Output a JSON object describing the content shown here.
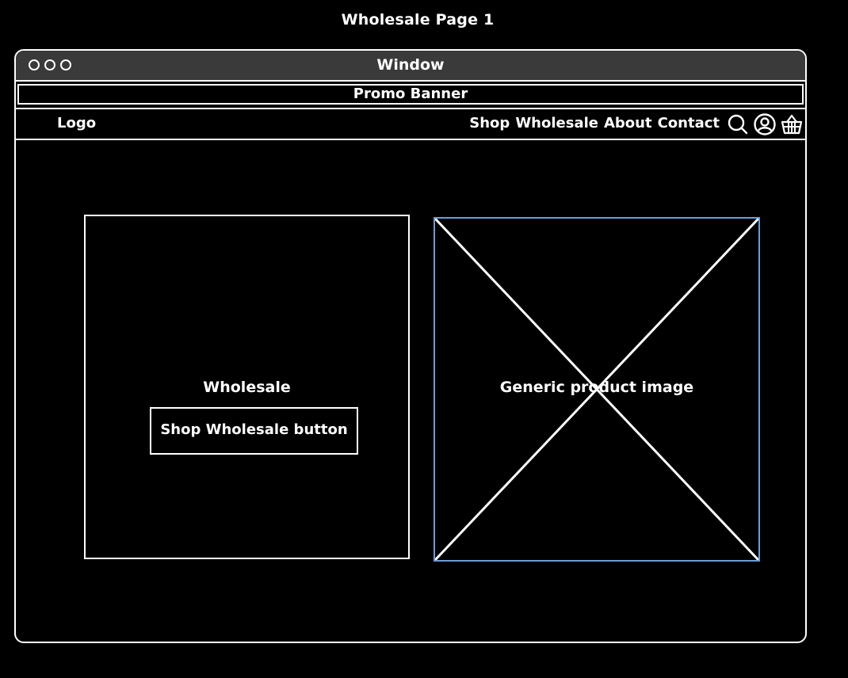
{
  "page": {
    "title": "Wholesale Page 1"
  },
  "window": {
    "title": "Window"
  },
  "promo": {
    "text": "Promo Banner"
  },
  "nav": {
    "logo": "Logo",
    "links": [
      "Shop",
      "Wholesale",
      "About",
      "Contact"
    ],
    "icons": [
      "search-icon",
      "account-icon",
      "basket-icon"
    ]
  },
  "hero": {
    "heading": "Wholesale",
    "button_label": "Shop Wholesale button"
  },
  "image": {
    "label": "Generic product image"
  },
  "colors": {
    "background": "#000000",
    "titlebar": "#3a3a3a",
    "stroke": "#ffffff",
    "image_selection": "#6a9ed9"
  }
}
